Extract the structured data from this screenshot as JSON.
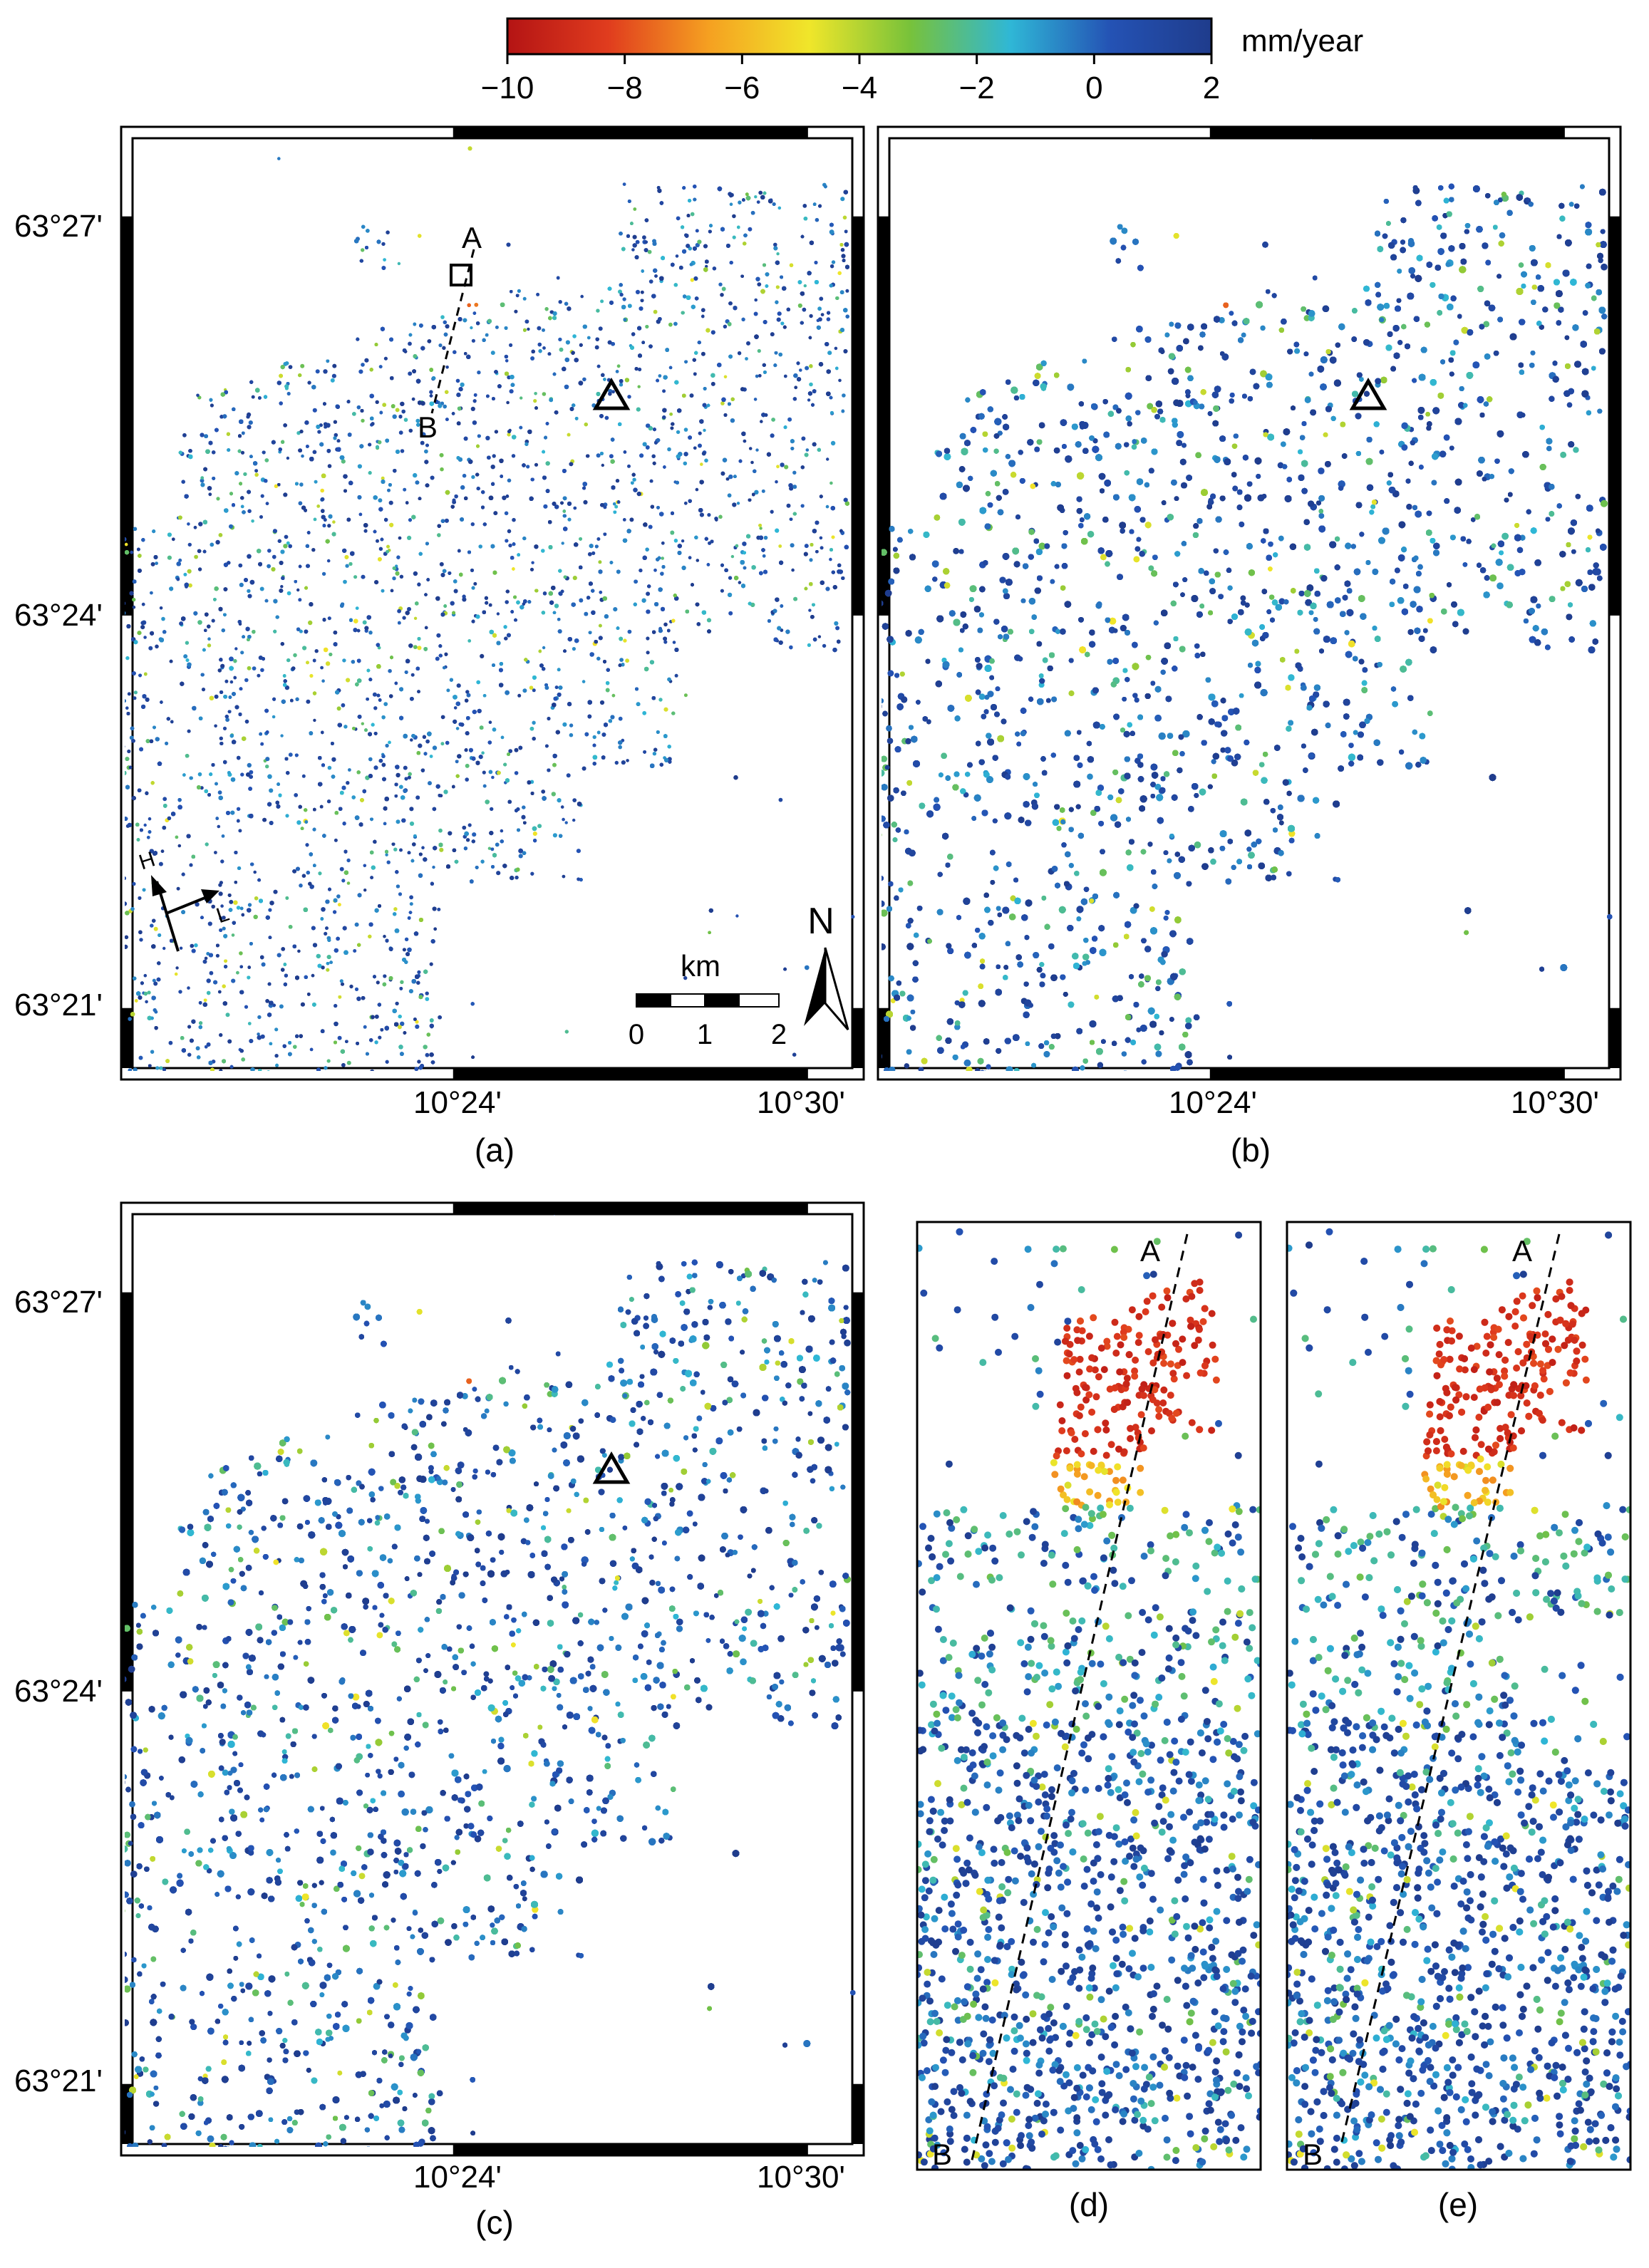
{
  "colorbar": {
    "unit": "mm/year",
    "ticks": [
      "−10",
      "−8",
      "−6",
      "−4",
      "−2",
      "0",
      "2"
    ],
    "range": [
      -10,
      2
    ],
    "colors": [
      "#b41414",
      "#e03c1e",
      "#f5a021",
      "#f0e62a",
      "#78c23a",
      "#2fb7d6",
      "#2452b4",
      "#1f3c8c"
    ]
  },
  "axes": {
    "lat_labels": [
      "63°27'",
      "63°24'",
      "63°21'"
    ],
    "lon_labels": [
      "10°24'",
      "10°30'"
    ]
  },
  "panels": {
    "a": {
      "label": "(a)",
      "point_a": "A",
      "point_b": "B"
    },
    "b": {
      "label": "(b)"
    },
    "c": {
      "label": "(c)"
    },
    "d": {
      "label": "(d)",
      "point_a": "A",
      "point_b": "B"
    },
    "e": {
      "label": "(e)",
      "point_a": "A",
      "point_b": "B"
    }
  },
  "scalebar": {
    "unit": "km",
    "ticks": [
      "0",
      "1",
      "2"
    ]
  },
  "north_arrow": {
    "label": "N"
  },
  "flight_direction": {
    "heading_label": "H",
    "look_label": "L"
  },
  "marker_symbols": [
    "triangle-marker",
    "square-marker"
  ]
}
